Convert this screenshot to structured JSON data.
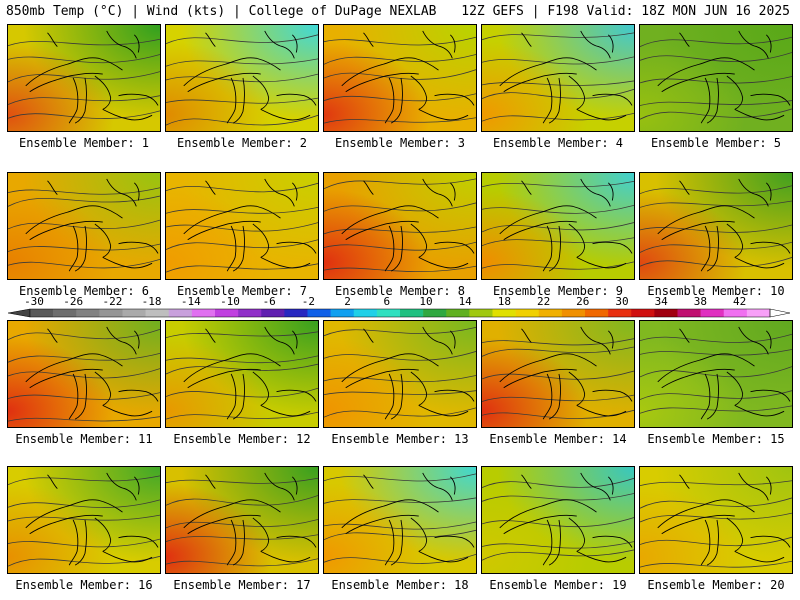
{
  "header": {
    "left": "850mb Temp (°C) | Wind (kts) | College of DuPage NEXLAB",
    "right": "12Z GEFS | F198 Valid: 18Z MON JUN 16 2025"
  },
  "panels": [
    {
      "label": "Ensemble Member: 1",
      "base": "#d6c800",
      "tr": "#30a020",
      "bl": "#e05010"
    },
    {
      "label": "Ensemble Member: 2",
      "base": "#d6d200",
      "tr": "#40d8d8",
      "bl": "#e08a00"
    },
    {
      "label": "Ensemble Member: 3",
      "base": "#e8b000",
      "tr": "#b8d400",
      "bl": "#e03810"
    },
    {
      "label": "Ensemble Member: 4",
      "base": "#c6d000",
      "tr": "#40c8d0",
      "bl": "#f09800"
    },
    {
      "label": "Ensemble Member: 5",
      "base": "#70b020",
      "tr": "#58a818",
      "bl": "#98c010"
    },
    {
      "label": "Ensemble Member: 6",
      "base": "#e8a800",
      "tr": "#98c410",
      "bl": "#e88000"
    },
    {
      "label": "Ensemble Member: 7",
      "base": "#e8b400",
      "tr": "#c8d000",
      "bl": "#f09c00"
    },
    {
      "label": "Ensemble Member: 8",
      "base": "#e8a000",
      "tr": "#c0d000",
      "bl": "#e03010"
    },
    {
      "label": "Ensemble Member: 9",
      "base": "#b8cc00",
      "tr": "#40d0d0",
      "bl": "#f08c00"
    },
    {
      "label": "Ensemble Member: 10",
      "base": "#d8c000",
      "tr": "#40a020",
      "bl": "#e04810"
    },
    {
      "label": "Ensemble Member: 11",
      "base": "#e8a800",
      "tr": "#70b020",
      "bl": "#e03010"
    },
    {
      "label": "Ensemble Member: 12",
      "base": "#c8cc00",
      "tr": "#38a020",
      "bl": "#e89800"
    },
    {
      "label": "Ensemble Member: 13",
      "base": "#e0b800",
      "tr": "#78b820",
      "bl": "#f09400"
    },
    {
      "label": "Ensemble Member: 14",
      "base": "#e0b000",
      "tr": "#80b820",
      "bl": "#e03010"
    },
    {
      "label": "Ensemble Member: 15",
      "base": "#80b820",
      "tr": "#60a820",
      "bl": "#a8c810"
    },
    {
      "label": "Ensemble Member: 16",
      "base": "#d8cc00",
      "tr": "#40a828",
      "bl": "#e89000"
    },
    {
      "label": "Ensemble Member: 17",
      "base": "#d8c000",
      "tr": "#38a020",
      "bl": "#e03010"
    },
    {
      "label": "Ensemble Member: 18",
      "base": "#d8c800",
      "tr": "#40d8d0",
      "bl": "#f09800"
    },
    {
      "label": "Ensemble Member: 19",
      "base": "#b8cc00",
      "tr": "#38c8c0",
      "bl": "#d0c800"
    },
    {
      "label": "Ensemble Member: 20",
      "base": "#d8cc00",
      "tr": "#a0c410",
      "bl": "#e8a800"
    }
  ],
  "colorbar": {
    "ticks": [
      "-30",
      "-26",
      "-22",
      "-18",
      "-14",
      "-10",
      "-6",
      "-2",
      "2",
      "6",
      "10",
      "14",
      "18",
      "22",
      "26",
      "30",
      "34",
      "38",
      "42"
    ],
    "colors": [
      "#5a5a5a",
      "#6e6e6e",
      "#828282",
      "#969696",
      "#aaaaaa",
      "#bebebe",
      "#c8a0dc",
      "#e070f0",
      "#c040e0",
      "#9030c8",
      "#6020b0",
      "#2828c0",
      "#1060e8",
      "#10a0f0",
      "#20d0e8",
      "#30e0c0",
      "#20c080",
      "#30a840",
      "#60b020",
      "#a0c810",
      "#e0e000",
      "#f0d000",
      "#f0b000",
      "#f09000",
      "#f06800",
      "#e83010",
      "#d01010",
      "#a00010",
      "#c01070",
      "#e030c0",
      "#f070f0",
      "#f8a0f8"
    ]
  }
}
